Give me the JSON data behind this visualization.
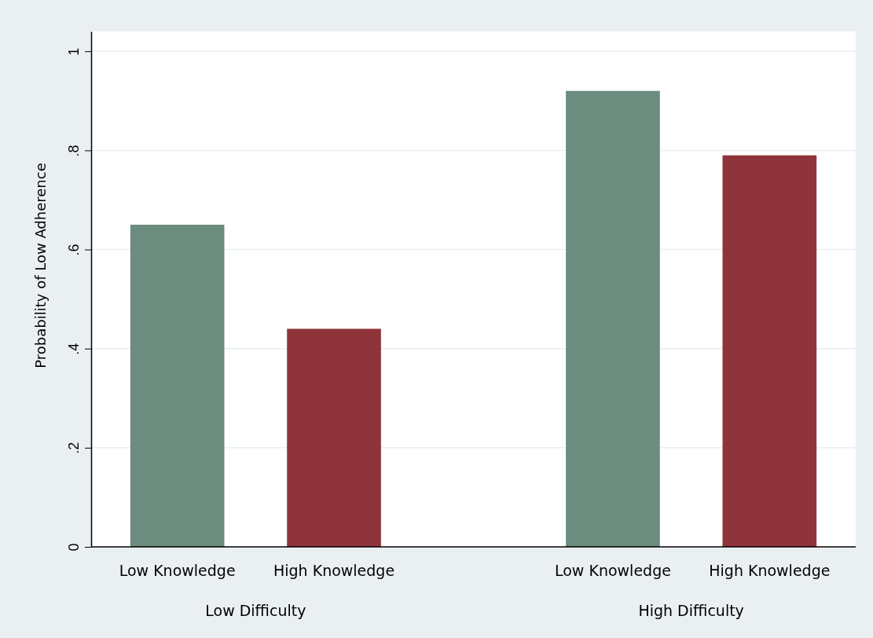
{
  "chart_data": {
    "type": "bar",
    "ylabel": "Probability of Low Adherence",
    "categories": [
      "Low Knowledge",
      "High Knowledge",
      "Low Knowledge",
      "High Knowledge"
    ],
    "values": [
      0.65,
      0.44,
      0.92,
      0.79
    ],
    "colors": [
      "#6b8c7e",
      "#8f343a",
      "#6b8c7e",
      "#8f343a"
    ],
    "ylim": [
      0,
      1.04
    ],
    "yticks": [
      0,
      {
        "value": 0.2,
        "label": ".2"
      },
      {
        "value": 0.4,
        "label": ".4"
      },
      {
        "value": 0.6,
        "label": ".6"
      },
      {
        "value": 0.8,
        "label": ".8"
      },
      1
    ],
    "grid": "y",
    "annotations": [
      "Low Difficulty",
      "High Difficulty"
    ]
  }
}
